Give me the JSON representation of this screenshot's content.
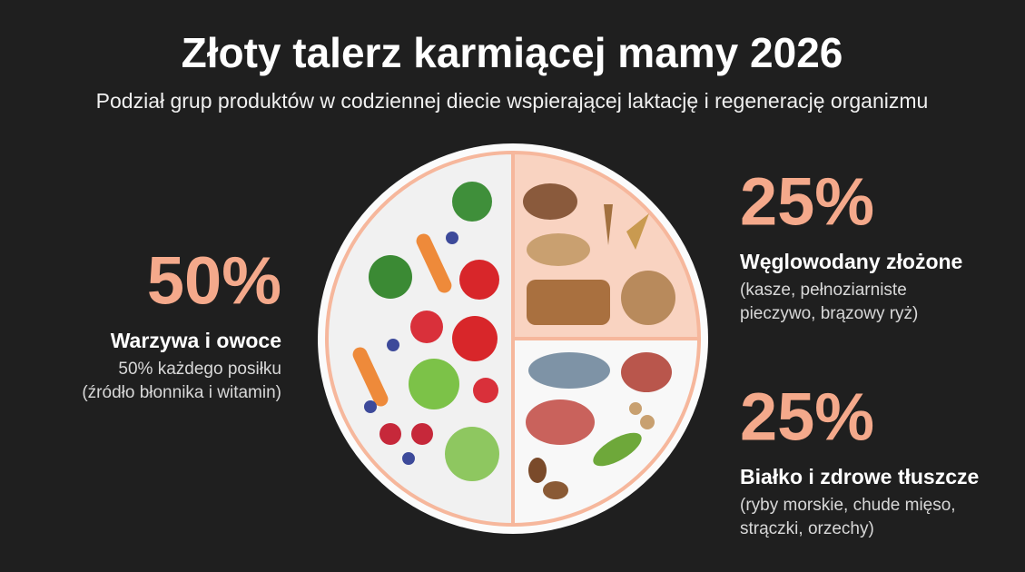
{
  "chart_data": {
    "type": "pie",
    "title": "Złoty talerz karmiącej mamy 2026",
    "subtitle": "Podział grup produktów w codziennej diecie wspierającej laktację i regenerację organizmu",
    "categories": [
      "Warzywa i owoce",
      "Węglowodany złożone",
      "Białko i zdrowe tłuszcze"
    ],
    "values": [
      50,
      25,
      25
    ],
    "value_labels": [
      "50%",
      "25%",
      "25%"
    ],
    "descriptions": [
      [
        "50% każdego posiłku",
        "(źródło błonnika i witamin)"
      ],
      [
        "(kasze, pełnoziarniste",
        "pieczywo, brązowy ryż)"
      ],
      [
        "(ryby morskie, chude mięso,",
        "strączki, orzechy)"
      ]
    ],
    "colors": [
      "#f1f1f1",
      "#f9d3c1",
      "#f8f8f8"
    ]
  }
}
